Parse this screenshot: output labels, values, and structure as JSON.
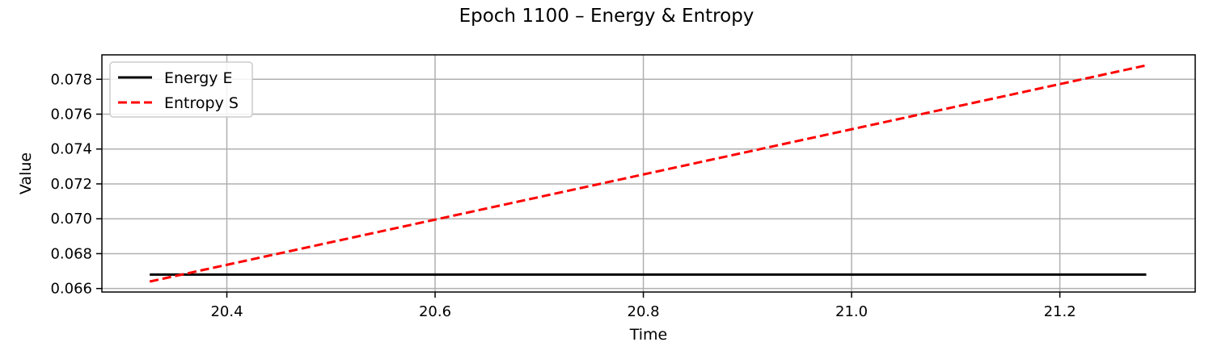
{
  "chart_data": {
    "type": "line",
    "title": "Epoch 1100 – Energy & Entropy",
    "xlabel": "Time",
    "ylabel": "Value",
    "xlim": [
      20.28,
      21.33
    ],
    "ylim": [
      0.0658,
      0.0794
    ],
    "xticks": [
      "20.4",
      "20.6",
      "20.8",
      "21.0",
      "21.2"
    ],
    "xtick_values": [
      20.4,
      20.6,
      20.8,
      21.0,
      21.2
    ],
    "yticks": [
      "0.066",
      "0.068",
      "0.070",
      "0.072",
      "0.074",
      "0.076",
      "0.078"
    ],
    "ytick_values": [
      0.066,
      0.068,
      0.07,
      0.072,
      0.074,
      0.076,
      0.078
    ],
    "grid": true,
    "legend_position": "top-left",
    "series": [
      {
        "name": "Energy E",
        "color": "#000000",
        "style": "solid",
        "x": [
          20.326,
          21.283
        ],
        "y": [
          0.0668,
          0.0668
        ]
      },
      {
        "name": "Entropy S",
        "color": "#ff0000",
        "style": "dashed",
        "x": [
          20.326,
          21.283
        ],
        "y": [
          0.0664,
          0.0788
        ]
      }
    ]
  }
}
